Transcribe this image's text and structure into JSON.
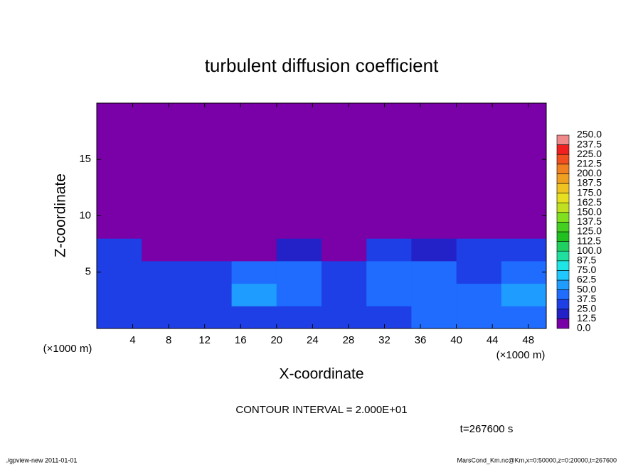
{
  "chart_data": {
    "type": "contour",
    "title": "turbulent diffusion coefficient",
    "x_label": "X-coordinate",
    "y_label": "Z-coordinate",
    "x_unit": "(×1000 m)",
    "y_unit": "(×1000 m)",
    "xlim": [
      0,
      50
    ],
    "ylim": [
      0,
      20
    ],
    "xticks": [
      4,
      8,
      12,
      16,
      20,
      24,
      28,
      32,
      36,
      40,
      44,
      48
    ],
    "yticks": [
      5,
      10,
      15
    ],
    "x_edges": [
      0,
      5,
      10,
      15,
      20,
      25,
      30,
      35,
      40,
      45,
      50
    ],
    "y_edges": [
      0,
      2,
      4,
      6,
      8,
      10,
      20
    ],
    "z": [
      [
        35,
        30,
        30,
        35,
        35,
        35,
        35,
        40,
        45,
        45
      ],
      [
        35,
        32,
        35,
        50,
        45,
        30,
        40,
        45,
        40,
        50
      ],
      [
        35,
        30,
        35,
        40,
        45,
        30,
        40,
        40,
        35,
        45
      ],
      [
        30,
        10,
        5,
        10,
        15,
        5,
        30,
        20,
        25,
        35
      ],
      [
        2,
        0,
        0,
        0,
        0,
        0,
        5,
        0,
        0,
        5
      ],
      [
        0,
        0,
        0,
        0,
        0,
        0,
        0,
        0,
        0,
        0
      ]
    ],
    "levels": [
      {
        "value": 0,
        "label": "0.0"
      },
      {
        "value": 12.5,
        "label": "12.5"
      },
      {
        "value": 25,
        "label": "25.0"
      },
      {
        "value": 37.5,
        "label": "37.5"
      },
      {
        "value": 50,
        "label": "50.0"
      },
      {
        "value": 62.5,
        "label": "62.5"
      },
      {
        "value": 75,
        "label": "75.0"
      },
      {
        "value": 87.5,
        "label": "87.5"
      },
      {
        "value": 100,
        "label": "100.0"
      },
      {
        "value": 112.5,
        "label": "112.5"
      },
      {
        "value": 125,
        "label": "125.0"
      },
      {
        "value": 137.5,
        "label": "137.5"
      },
      {
        "value": 150,
        "label": "150.0"
      },
      {
        "value": 162.5,
        "label": "162.5"
      },
      {
        "value": 175,
        "label": "175.0"
      },
      {
        "value": 187.5,
        "label": "187.5"
      },
      {
        "value": 200,
        "label": "200.0"
      },
      {
        "value": 212.5,
        "label": "212.5"
      },
      {
        "value": 225,
        "label": "225.0"
      },
      {
        "value": 237.5,
        "label": "237.5"
      },
      {
        "value": 250,
        "label": "250.0"
      }
    ],
    "colors": [
      "#7a00a8",
      "#2222c8",
      "#1e3fe6",
      "#1f6cff",
      "#1f9cff",
      "#1fc8ff",
      "#1fe6e6",
      "#20e0a0",
      "#20d060",
      "#20c020",
      "#44d020",
      "#80e020",
      "#c0e020",
      "#e6e020",
      "#f0c420",
      "#f0a020",
      "#f08020",
      "#f05020",
      "#f02020",
      "#f08a8a"
    ],
    "annotation": "CONTOUR INTERVAL = 2.000E+01",
    "time_label": "t=267600 s",
    "footer_left": "./gpview-new  2011-01-01",
    "footer_right": "MarsCond_Km.nc@Km,x=0:50000,z=0:20000,t=267600"
  }
}
